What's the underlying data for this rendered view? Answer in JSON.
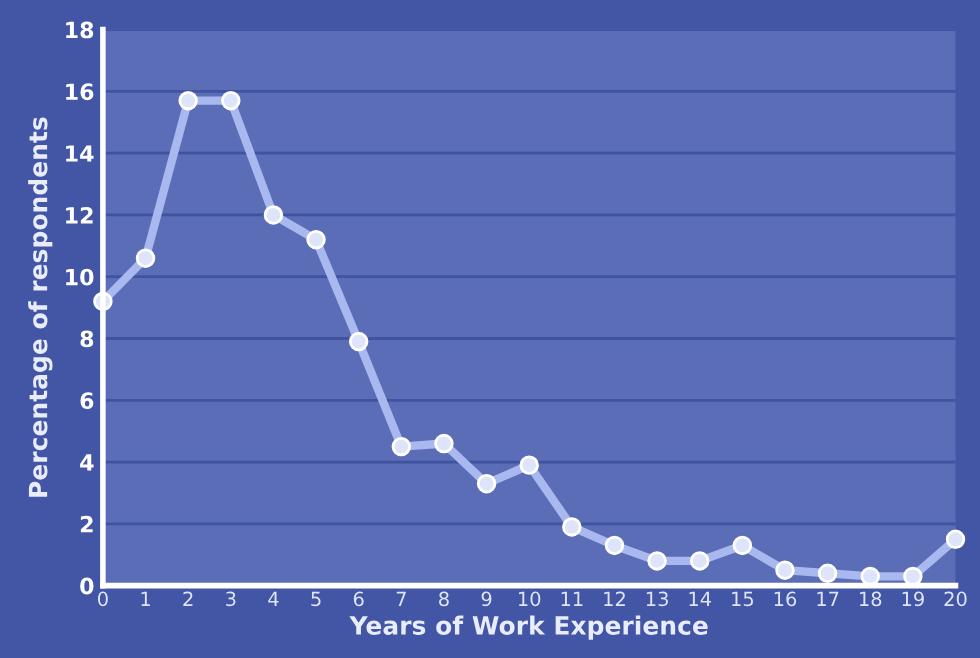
{
  "chart_data": {
    "type": "line",
    "xlabel": "Years of Work Experience",
    "ylabel": "Percentage of respondents",
    "x": [
      0,
      1,
      2,
      3,
      4,
      5,
      6,
      7,
      8,
      9,
      10,
      11,
      12,
      13,
      14,
      15,
      16,
      17,
      18,
      19,
      20
    ],
    "series": [
      {
        "color": "#a9b8ee",
        "values": [
          9.2,
          10.6,
          15.7,
          15.7,
          12.0,
          11.2,
          7.9,
          4.5,
          4.6,
          3.3,
          3.9,
          1.9,
          1.3,
          0.8,
          0.8,
          1.3,
          0.5,
          0.4,
          0.3,
          0.3,
          1.5
        ]
      }
    ],
    "xlim": [
      0,
      20
    ],
    "xticks": [
      0,
      1,
      2,
      3,
      4,
      5,
      6,
      7,
      8,
      9,
      10,
      11,
      12,
      13,
      14,
      15,
      16,
      17,
      18,
      19,
      20
    ],
    "ylim": [
      0,
      18
    ],
    "yticks": [
      0,
      2,
      4,
      6,
      8,
      10,
      12,
      14,
      16,
      18
    ],
    "grid": "y",
    "marker": "circle",
    "line_style": "solid",
    "legend": false
  }
}
